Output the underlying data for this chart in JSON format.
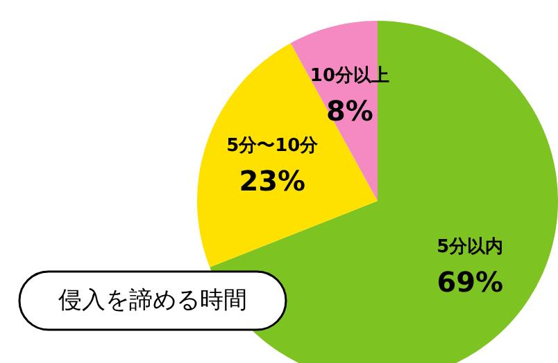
{
  "chart_data": {
    "type": "pie",
    "title": "侵入を諦める時間",
    "categories": [
      "5分以内",
      "5分〜10分",
      "10分以上"
    ],
    "values": [
      69,
      23,
      8
    ],
    "colors": [
      "#7dc322",
      "#ffe100",
      "#f58ac3"
    ],
    "value_labels": [
      "69%",
      "23%",
      "8%"
    ]
  }
}
